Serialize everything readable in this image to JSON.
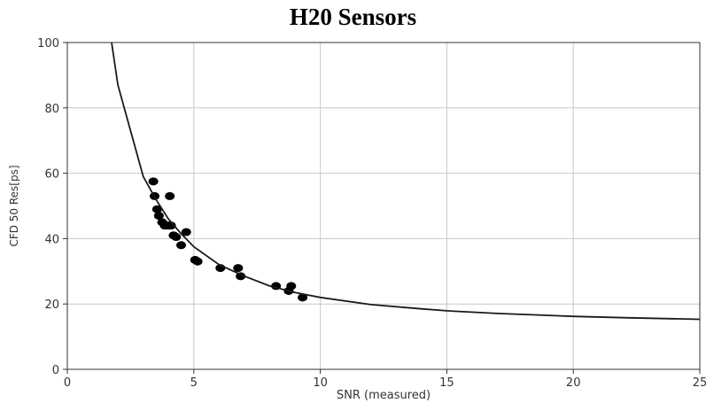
{
  "chart_data": {
    "type": "scatter",
    "title": "H20 Sensors",
    "xlabel": "SNR (measured)",
    "ylabel": "CFD 50 Res[ps]",
    "xlim": [
      0,
      25
    ],
    "ylim": [
      0,
      100
    ],
    "x_ticks": [
      0,
      5,
      10,
      15,
      20,
      25
    ],
    "y_ticks": [
      0,
      20,
      40,
      60,
      80,
      100
    ],
    "x_tick_labels": [
      "0",
      "5",
      "10",
      "15",
      "20",
      "25"
    ],
    "y_tick_labels": [
      "0",
      "20",
      "40",
      "60",
      "80",
      "100"
    ],
    "grid": true,
    "colors": {
      "points": "#000000",
      "fit_line": "#1a1a1a",
      "grid": "#c8c8c8"
    },
    "series": [
      {
        "kind": "points",
        "x": [
          3.4,
          3.45,
          3.55,
          3.62,
          3.75,
          3.85,
          3.95,
          4.0,
          4.05,
          4.1,
          4.2,
          4.3,
          4.5,
          4.7,
          5.05,
          5.15,
          6.05,
          6.75,
          6.85,
          8.25,
          8.75,
          8.85,
          9.3
        ],
        "y": [
          57.5,
          53,
          49,
          47,
          45,
          44,
          44,
          44,
          53,
          44,
          41,
          40.5,
          38,
          42,
          33.5,
          33,
          31,
          31,
          28.5,
          25.5,
          24,
          25.5,
          22
        ]
      },
      {
        "kind": "fit-curve",
        "x": [
          1.75,
          2.0,
          2.5,
          3.0,
          3.5,
          4.0,
          4.5,
          5.0,
          6.0,
          7.0,
          8.0,
          9.0,
          10.0,
          12.0,
          14.0,
          15.0,
          17.0,
          20.0,
          22.0,
          25.0
        ],
        "y": [
          100,
          87,
          73,
          59,
          52,
          46,
          41.5,
          37.5,
          32,
          28.5,
          25.5,
          23.5,
          22,
          19.8,
          18.5,
          17.9,
          17.1,
          16.2,
          15.8,
          15.3
        ]
      }
    ]
  }
}
